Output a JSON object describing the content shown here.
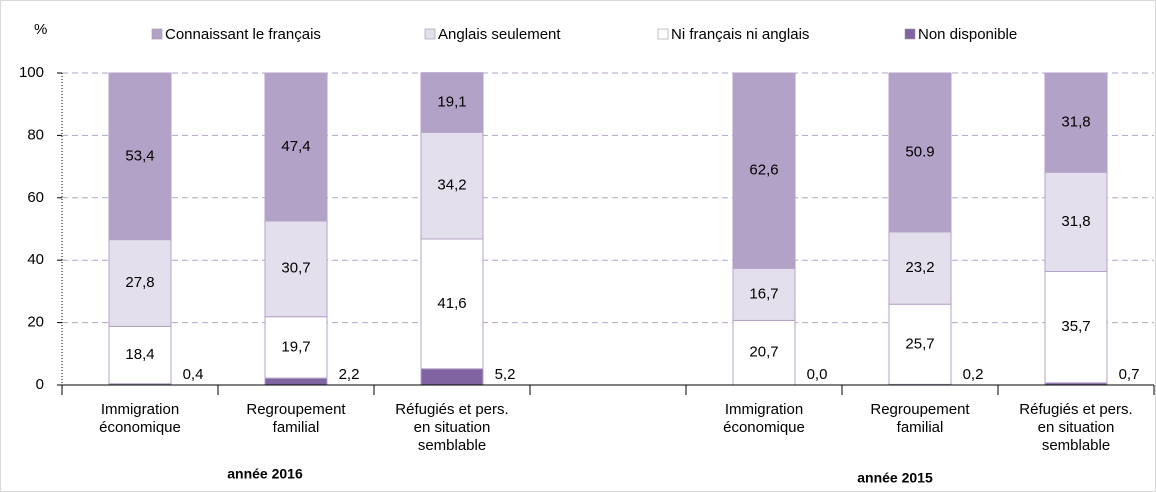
{
  "chart_data": {
    "type": "stacked_bar",
    "y_axis_label": "%",
    "categories": [
      "Immigration\néconomique",
      "Regroupement\nfamilial",
      "Réfugiés et pers.\nen situation\nsemblable",
      null,
      "Immigration\néconomique",
      "Regroupement\nfamilial",
      "Réfugiés et pers.\nen situation\nsemblable"
    ],
    "group_labels": [
      "année 2016",
      "année 2015"
    ],
    "series": [
      {
        "name": "Non disponible",
        "color": "#8064a2",
        "values": [
          0.4,
          2.2,
          5.2,
          null,
          0.0,
          0.2,
          0.7
        ],
        "value_labels": [
          "0,4",
          "2,2",
          "5,2",
          null,
          "0,0",
          "0,2",
          "0,7"
        ]
      },
      {
        "name": "Ni français ni anglais",
        "color": "#ffffff",
        "values": [
          18.4,
          19.7,
          41.6,
          null,
          20.7,
          25.7,
          35.7
        ],
        "value_labels": [
          "18,4",
          "19,7",
          "41,6",
          null,
          "20,7",
          "25,7",
          "35,7"
        ]
      },
      {
        "name": "Anglais seulement",
        "color": "#e4dfec",
        "values": [
          27.8,
          30.7,
          34.2,
          null,
          16.7,
          23.2,
          31.8
        ],
        "value_labels": [
          "27,8",
          "30,7",
          "34,2",
          null,
          "16,7",
          "23,2",
          "31,8"
        ]
      },
      {
        "name": "Connaissant le français",
        "color": "#b3a2c7",
        "values": [
          53.4,
          47.4,
          19.1,
          null,
          62.6,
          50.9,
          31.8
        ],
        "value_labels": [
          "53,4",
          "47,4",
          "19,1",
          null,
          "62,6",
          "50.9",
          "31,8"
        ]
      }
    ],
    "legend_order": [
      3,
      2,
      1,
      0
    ],
    "ylim": [
      0,
      100
    ],
    "yticks": [
      0,
      20,
      40,
      60,
      80,
      100
    ],
    "grid": true
  }
}
